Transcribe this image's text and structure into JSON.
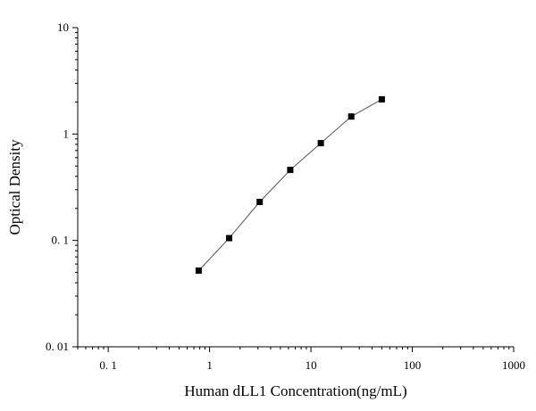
{
  "chart_data": {
    "type": "scatter",
    "xlabel": "Human dLL1 Concentration(ng/mL)",
    "ylabel": "Optical Density",
    "x_scale": "log",
    "y_scale": "log",
    "xlim": [
      0.05,
      1000
    ],
    "ylim": [
      0.01,
      10
    ],
    "x_ticks": [
      {
        "value": 0.1,
        "label": "0. 1"
      },
      {
        "value": 1,
        "label": "1"
      },
      {
        "value": 10,
        "label": "10"
      },
      {
        "value": 100,
        "label": "100"
      },
      {
        "value": 1000,
        "label": "1000"
      }
    ],
    "y_ticks": [
      {
        "value": 0.01,
        "label": "0. 01"
      },
      {
        "value": 0.1,
        "label": "0. 1"
      },
      {
        "value": 1,
        "label": "1"
      },
      {
        "value": 10,
        "label": "10"
      }
    ],
    "grid": false,
    "series": [
      {
        "marker": "square",
        "color": "#000000",
        "line_color": "#555555",
        "points": [
          {
            "x": 0.78,
            "y": 0.052
          },
          {
            "x": 1.56,
            "y": 0.105
          },
          {
            "x": 3.12,
            "y": 0.23
          },
          {
            "x": 6.25,
            "y": 0.46
          },
          {
            "x": 12.5,
            "y": 0.82
          },
          {
            "x": 25,
            "y": 1.46
          },
          {
            "x": 50,
            "y": 2.12
          }
        ]
      }
    ]
  }
}
